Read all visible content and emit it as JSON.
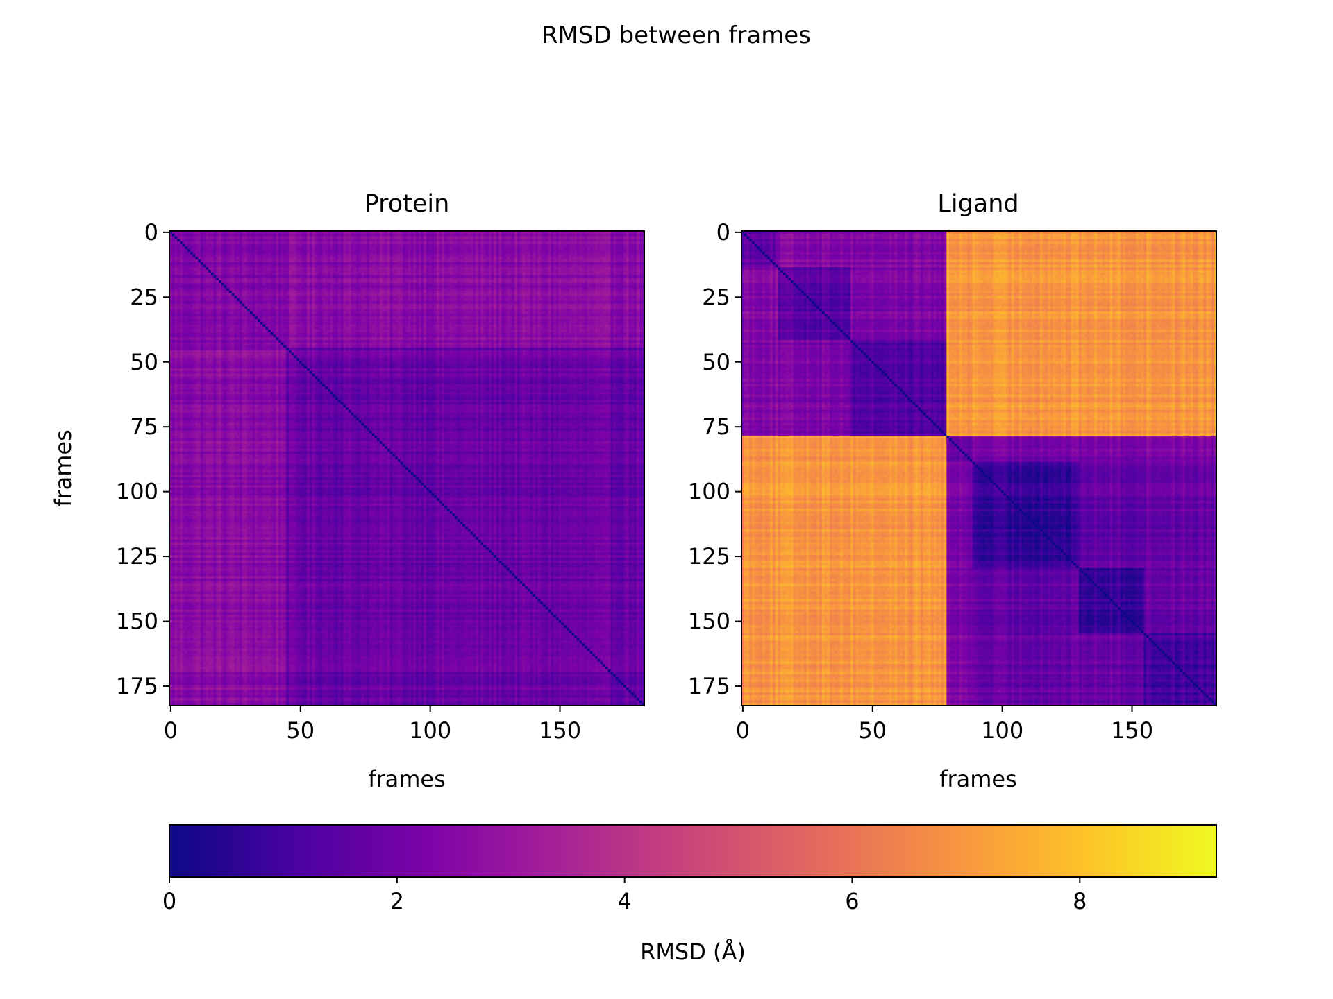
{
  "suptitle": "RMSD between frames",
  "colormap": "plasma",
  "chart_data": [
    {
      "type": "heatmap",
      "title": "Protein",
      "xlabel": "frames",
      "ylabel": "frames",
      "n_frames": 183,
      "xlim": [
        0,
        183
      ],
      "ylim": [
        183,
        0
      ],
      "xticks": [
        0,
        50,
        100,
        150
      ],
      "yticks": [
        0,
        25,
        50,
        75,
        100,
        125,
        150,
        175
      ],
      "diagonal_value": 0.0,
      "blocks": [
        {
          "frames": [
            0,
            45
          ],
          "mean_rmsd": 2.4
        },
        {
          "frames": [
            45,
            183
          ],
          "mean_rmsd": 1.8
        }
      ],
      "off_block_mean_rmsd": 2.6,
      "max_rmsd_approx": 3.0
    },
    {
      "type": "heatmap",
      "title": "Ligand",
      "xlabel": "frames",
      "ylabel": "",
      "n_frames": 183,
      "xlim": [
        0,
        183
      ],
      "ylim": [
        183,
        0
      ],
      "xticks": [
        0,
        50,
        100,
        150
      ],
      "yticks": [
        0,
        25,
        50,
        75,
        100,
        125,
        150,
        175
      ],
      "diagonal_value": 0.0,
      "blocks": [
        {
          "frames": [
            0,
            14
          ],
          "mean_rmsd": 1.8
        },
        {
          "frames": [
            14,
            42
          ],
          "mean_rmsd": 1.5
        },
        {
          "frames": [
            42,
            79
          ],
          "mean_rmsd": 1.3
        },
        {
          "frames": [
            79,
            89
          ],
          "mean_rmsd": 1.9
        },
        {
          "frames": [
            89,
            130
          ],
          "mean_rmsd": 0.7
        },
        {
          "frames": [
            130,
            155
          ],
          "mean_rmsd": 0.8
        },
        {
          "frames": [
            155,
            183
          ],
          "mean_rmsd": 1.1
        }
      ],
      "off_block_mean_rmsd": 7.0,
      "max_rmsd_approx": 9.2
    }
  ],
  "colorbar": {
    "label": "RMSD (Å)",
    "vmin": 0,
    "vmax": 9.2,
    "ticks": [
      0,
      2,
      4,
      6,
      8
    ],
    "orientation": "horizontal"
  }
}
